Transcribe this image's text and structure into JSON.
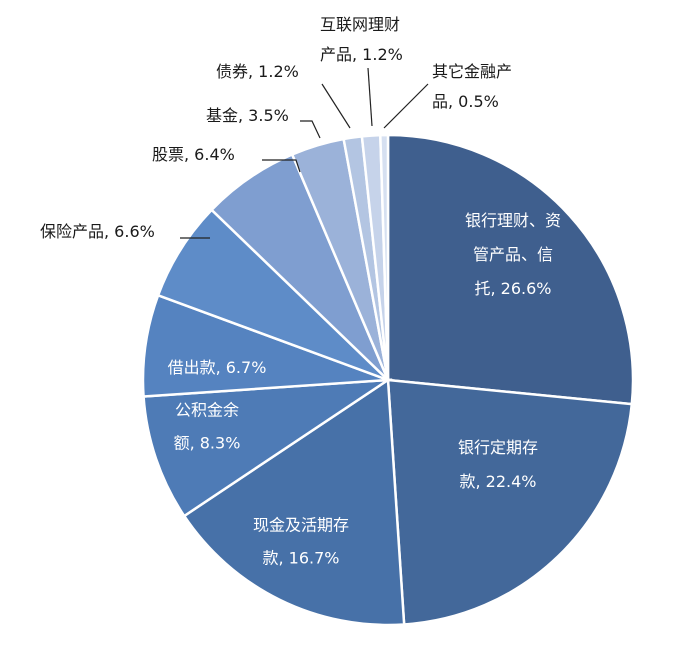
{
  "chart_data": {
    "type": "pie",
    "slices": [
      {
        "label": "银行理财、资管产品、信托, 26.6%",
        "lines": [
          "银行理财、资",
          "管产品、信",
          "托, 26.6%"
        ],
        "value": 26.6,
        "color": "#3f5f8e",
        "label_pos": "inside"
      },
      {
        "label": "银行定期存款, 22.4%",
        "lines": [
          "银行定期存",
          "款, 22.4%"
        ],
        "value": 22.4,
        "color": "#43689a",
        "label_pos": "inside"
      },
      {
        "label": "现金及活期存款, 16.7%",
        "lines": [
          "现金及活期存",
          "款, 16.7%"
        ],
        "value": 16.7,
        "color": "#4771a8",
        "label_pos": "inside"
      },
      {
        "label": "公积金余额, 8.3%",
        "lines": [
          "公积金余",
          "额, 8.3%"
        ],
        "value": 8.3,
        "color": "#4e7bb6",
        "label_pos": "inside"
      },
      {
        "label": "借出款, 6.7%",
        "lines": [
          "借出款, 6.7%"
        ],
        "value": 6.7,
        "color": "#5583c0",
        "label_pos": "inside"
      },
      {
        "label": "保险产品, 6.6%",
        "lines": [
          "保险产品, 6.6%"
        ],
        "value": 6.6,
        "color": "#5e8cc8",
        "label_pos": "outside"
      },
      {
        "label": "股票, 6.4%",
        "lines": [
          "股票, 6.4%"
        ],
        "value": 6.4,
        "color": "#7f9ed0",
        "label_pos": "outside"
      },
      {
        "label": "基金, 3.5%",
        "lines": [
          "基金, 3.5%"
        ],
        "value": 3.5,
        "color": "#9bb2d9",
        "label_pos": "outside"
      },
      {
        "label": "债券, 1.2%",
        "lines": [
          "债券, 1.2%"
        ],
        "value": 1.2,
        "color": "#b3c5e2",
        "label_pos": "outside"
      },
      {
        "label": "互联网理财产品, 1.2%",
        "lines": [
          "互联网理财",
          "产品, 1.2%"
        ],
        "value": 1.2,
        "color": "#c6d3ea",
        "label_pos": "outside"
      },
      {
        "label": "其它金融产品, 0.5%",
        "lines": [
          "其它金融产",
          "品, 0.5%"
        ],
        "value": 0.5,
        "color": "#d6e0f1",
        "label_pos": "outside"
      }
    ],
    "start_angle_deg": 0,
    "direction": "clockwise",
    "legend": "none",
    "title": ""
  }
}
